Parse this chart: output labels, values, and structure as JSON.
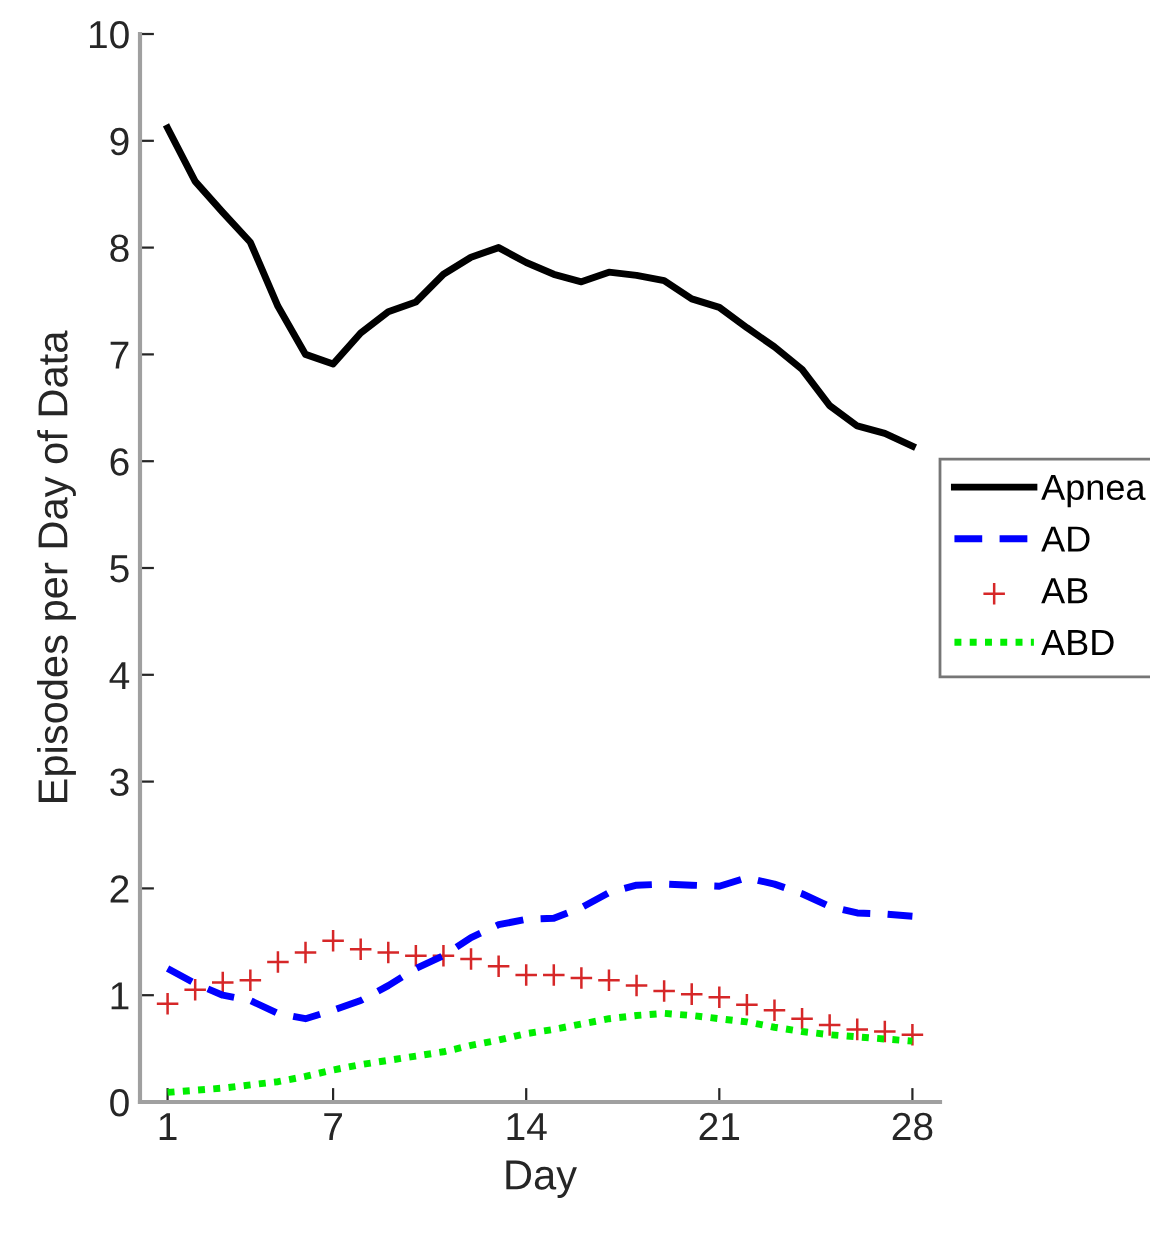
{
  "chart_data": {
    "type": "line",
    "xlabel": "Day",
    "ylabel": "Episodes per Day of Data",
    "x": [
      1,
      2,
      3,
      4,
      5,
      6,
      7,
      8,
      9,
      10,
      11,
      12,
      13,
      14,
      15,
      16,
      17,
      18,
      19,
      20,
      21,
      22,
      23,
      24,
      25,
      26,
      27,
      28
    ],
    "xlim": [
      0,
      29
    ],
    "xticks": [
      1,
      7,
      14,
      21,
      28
    ],
    "ylim": [
      0,
      10
    ],
    "yticks": [
      0,
      1,
      2,
      3,
      4,
      5,
      6,
      7,
      8,
      9,
      10
    ],
    "grid": false,
    "legend": "right",
    "series": [
      {
        "name": "Apnea",
        "color": "#000000",
        "line_style": "solid",
        "marker": "none",
        "values": [
          9.12,
          8.62,
          8.33,
          8.05,
          7.45,
          7.0,
          6.91,
          7.2,
          7.4,
          7.49,
          7.75,
          7.91,
          8.0,
          7.86,
          7.75,
          7.68,
          7.77,
          7.74,
          7.69,
          7.52,
          7.44,
          7.25,
          7.07,
          6.86,
          6.52,
          6.33,
          6.26,
          6.14
        ]
      },
      {
        "name": "AD",
        "color": "#0000ff",
        "line_style": "dashed",
        "marker": "none",
        "values": [
          1.25,
          1.11,
          1.0,
          0.95,
          0.83,
          0.78,
          0.86,
          0.95,
          1.09,
          1.25,
          1.37,
          1.54,
          1.66,
          1.71,
          1.72,
          1.82,
          1.96,
          2.03,
          2.04,
          2.03,
          2.02,
          2.1,
          2.04,
          1.95,
          1.83,
          1.77,
          1.76,
          1.74
        ]
      },
      {
        "name": "AB",
        "color": "#d62728",
        "type": "scatter",
        "marker": "cross",
        "values": [
          0.92,
          1.05,
          1.12,
          1.14,
          1.31,
          1.4,
          1.51,
          1.43,
          1.4,
          1.37,
          1.37,
          1.34,
          1.27,
          1.19,
          1.19,
          1.16,
          1.14,
          1.09,
          1.04,
          1.01,
          0.98,
          0.91,
          0.86,
          0.78,
          0.72,
          0.68,
          0.66,
          0.63
        ]
      },
      {
        "name": "ABD",
        "color": "#00ee00",
        "line_style": "dotted",
        "marker": "none",
        "values": [
          0.09,
          0.11,
          0.13,
          0.16,
          0.19,
          0.24,
          0.3,
          0.35,
          0.39,
          0.43,
          0.47,
          0.53,
          0.58,
          0.64,
          0.68,
          0.73,
          0.78,
          0.81,
          0.83,
          0.81,
          0.78,
          0.75,
          0.7,
          0.66,
          0.63,
          0.61,
          0.59,
          0.57
        ]
      }
    ]
  }
}
